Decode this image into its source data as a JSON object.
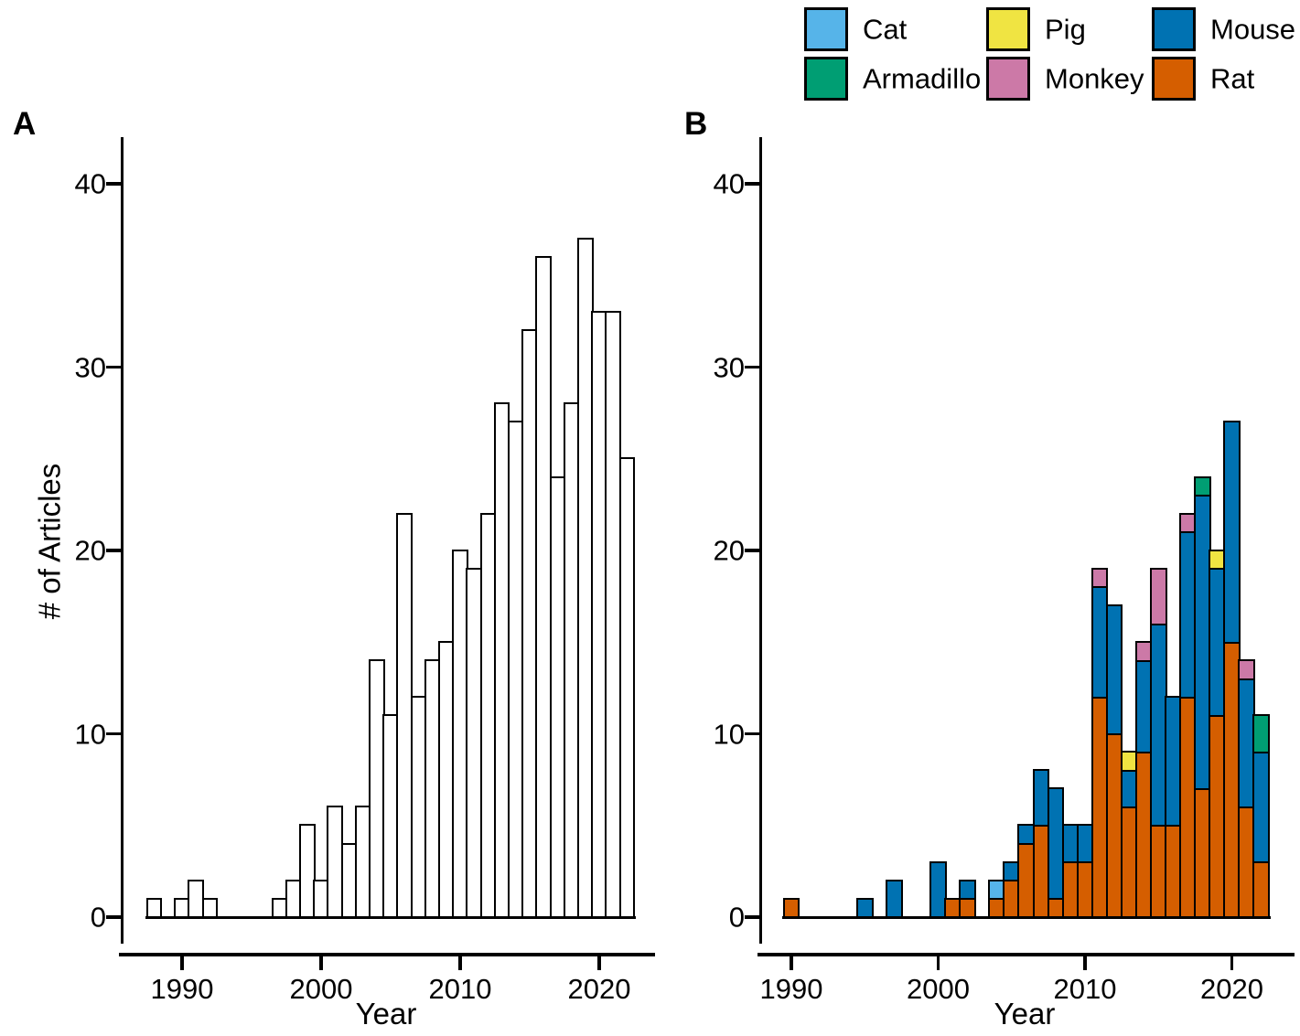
{
  "figure": {
    "panel_a_tag": "A",
    "panel_b_tag": "B",
    "background": "#ffffff"
  },
  "axes": {
    "xlabel": "Year",
    "ylabel": "# of Articles",
    "xticks": [
      1990,
      2000,
      2010,
      2020
    ],
    "yticks": [
      0,
      10,
      20,
      30,
      40
    ]
  },
  "legend": {
    "position": "top-right",
    "rows": 2,
    "columns": 3,
    "entries": [
      {
        "label": "Cat",
        "color": "#56B4E9"
      },
      {
        "label": "Armadillo",
        "color": "#009E73"
      },
      {
        "label": "Pig",
        "color": "#F0E442"
      },
      {
        "label": "Monkey",
        "color": "#CC79A7"
      },
      {
        "label": "Mouse",
        "color": "#0072B2"
      },
      {
        "label": "Rat",
        "color": "#D55E00"
      }
    ]
  },
  "chart_data": [
    {
      "panel": "A",
      "type": "bar",
      "title": "",
      "xlabel": "Year",
      "ylabel": "# of Articles",
      "xlim": [
        1986.5,
        2023.5
      ],
      "ylim": [
        0,
        42
      ],
      "xticks": [
        1990,
        2000,
        2010,
        2020
      ],
      "yticks": [
        0,
        10,
        20,
        30,
        40
      ],
      "grid": false,
      "bar_fill": "#ffffff",
      "bar_stroke": "#000000",
      "years": [
        1988,
        1990,
        1991,
        1992,
        1997,
        1998,
        1999,
        2000,
        2001,
        2002,
        2003,
        2004,
        2005,
        2006,
        2007,
        2008,
        2009,
        2010,
        2011,
        2012,
        2013,
        2014,
        2015,
        2016,
        2017,
        2018,
        2019,
        2020,
        2021,
        2022
      ],
      "values": [
        1,
        1,
        2,
        1,
        1,
        2,
        5,
        2,
        6,
        4,
        6,
        14,
        11,
        22,
        12,
        14,
        15,
        20,
        19,
        22,
        28,
        27,
        32,
        36,
        24,
        28,
        37,
        33,
        33,
        25
      ]
    },
    {
      "panel": "B",
      "type": "stacked-bar",
      "title": "",
      "xlabel": "Year",
      "ylabel": "",
      "xlim": [
        1986.5,
        2023.5
      ],
      "ylim": [
        0,
        42
      ],
      "xticks": [
        1990,
        2000,
        2010,
        2020
      ],
      "yticks": [
        0,
        10,
        20,
        30,
        40
      ],
      "grid": false,
      "stack_order_bottom_to_top": [
        "Rat",
        "Mouse",
        "Monkey",
        "Pig",
        "Armadillo",
        "Cat"
      ],
      "series_colors": {
        "Cat": "#56B4E9",
        "Armadillo": "#009E73",
        "Pig": "#F0E442",
        "Monkey": "#CC79A7",
        "Mouse": "#0072B2",
        "Rat": "#D55E00"
      },
      "bars": [
        {
          "year": 1990,
          "segments": {
            "Rat": 1
          }
        },
        {
          "year": 1995,
          "segments": {
            "Mouse": 1
          }
        },
        {
          "year": 1997,
          "segments": {
            "Mouse": 2
          }
        },
        {
          "year": 2000,
          "segments": {
            "Mouse": 3
          }
        },
        {
          "year": 2001,
          "segments": {
            "Rat": 1
          }
        },
        {
          "year": 2002,
          "segments": {
            "Rat": 1,
            "Mouse": 1
          }
        },
        {
          "year": 2004,
          "segments": {
            "Rat": 1,
            "Cat": 1
          }
        },
        {
          "year": 2005,
          "segments": {
            "Rat": 2,
            "Mouse": 1
          }
        },
        {
          "year": 2006,
          "segments": {
            "Rat": 4,
            "Mouse": 1
          }
        },
        {
          "year": 2007,
          "segments": {
            "Rat": 5,
            "Mouse": 3
          }
        },
        {
          "year": 2008,
          "segments": {
            "Rat": 1,
            "Mouse": 6
          }
        },
        {
          "year": 2009,
          "segments": {
            "Rat": 3,
            "Mouse": 2
          }
        },
        {
          "year": 2010,
          "segments": {
            "Rat": 3,
            "Mouse": 2
          }
        },
        {
          "year": 2011,
          "segments": {
            "Rat": 12,
            "Mouse": 6,
            "Monkey": 1
          }
        },
        {
          "year": 2012,
          "segments": {
            "Rat": 10,
            "Mouse": 7
          }
        },
        {
          "year": 2013,
          "segments": {
            "Rat": 6,
            "Mouse": 2,
            "Pig": 1
          }
        },
        {
          "year": 2014,
          "segments": {
            "Rat": 9,
            "Mouse": 5,
            "Monkey": 1
          }
        },
        {
          "year": 2015,
          "segments": {
            "Rat": 5,
            "Mouse": 11,
            "Monkey": 3
          }
        },
        {
          "year": 2016,
          "segments": {
            "Rat": 5,
            "Mouse": 7
          }
        },
        {
          "year": 2017,
          "segments": {
            "Rat": 12,
            "Mouse": 9,
            "Monkey": 1
          }
        },
        {
          "year": 2018,
          "segments": {
            "Rat": 7,
            "Mouse": 16,
            "Armadillo": 1
          }
        },
        {
          "year": 2019,
          "segments": {
            "Rat": 11,
            "Mouse": 8,
            "Pig": 1
          }
        },
        {
          "year": 2020,
          "segments": {
            "Rat": 15,
            "Mouse": 12
          }
        },
        {
          "year": 2021,
          "segments": {
            "Rat": 6,
            "Mouse": 7,
            "Monkey": 1
          }
        },
        {
          "year": 2022,
          "segments": {
            "Rat": 3,
            "Mouse": 6,
            "Armadillo": 2
          }
        }
      ]
    }
  ]
}
